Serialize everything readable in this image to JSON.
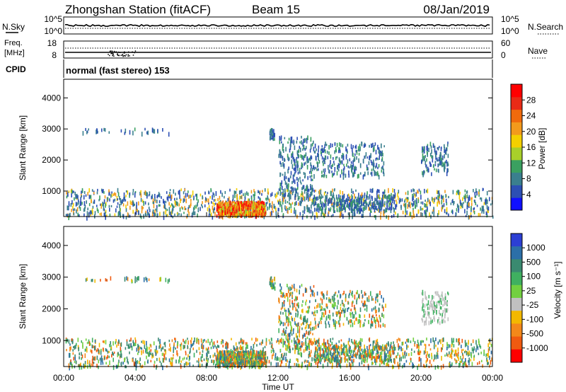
{
  "header": {
    "station": "Zhongshan Station (fitACF)",
    "beam": "Beam 15",
    "date": "08/Jan/2019"
  },
  "top_panels": {
    "nsky_label": "N.Sky",
    "nsky_ticks": [
      "10^5",
      "10^0"
    ],
    "nsearch_label": "N.Search",
    "nsearch_ticks": [
      "10^5",
      "10^0"
    ],
    "freq_label_1": "Freq.",
    "freq_label_2": "[MHz]",
    "freq_ticks": [
      "18",
      "8"
    ],
    "nave_label": "Nave",
    "nave_ticks": [
      "60",
      "0"
    ],
    "cpid_label": "CPID",
    "cpid_text": "normal (fast stereo) 153"
  },
  "chart_data": [
    {
      "type": "heatmap",
      "name": "power-panel",
      "ylabel": "Slant Range [km]",
      "y_ticks": [
        "1000",
        "2000",
        "3000",
        "4000"
      ],
      "ylim": [
        180,
        4600
      ],
      "xlim": [
        0,
        24
      ],
      "colorbar_label": "Power [dB]",
      "colorbar_ticks": [
        "4",
        "8",
        "12",
        "16",
        "20",
        "24",
        "28"
      ],
      "colorbar_colors": [
        "#1010ff",
        "#2c4fb4",
        "#3a7f8e",
        "#3aa060",
        "#a8cf2a",
        "#f4d000",
        "#f39a1c",
        "#f06a0c",
        "#e82a16",
        "#ff0000"
      ]
    },
    {
      "type": "heatmap",
      "name": "velocity-panel",
      "ylabel": "Slant Range [km]",
      "y_ticks": [
        "1000",
        "2000",
        "3000",
        "4000"
      ],
      "ylim": [
        180,
        4600
      ],
      "xlim": [
        0,
        24
      ],
      "colorbar_label": "Velocity [m s⁻¹]",
      "colorbar_ticks": [
        "1000",
        "500",
        "100",
        "25",
        "-25",
        "-100",
        "-500",
        "-1000"
      ],
      "colorbar_colors": [
        "#2c3fd4",
        "#2c6fa8",
        "#3a8a70",
        "#3fb060",
        "#72d040",
        "#c0c0c0",
        "#f3b800",
        "#f3881a",
        "#f05a10",
        "#ff0000"
      ]
    }
  ],
  "x_axis": {
    "tick_labels": [
      "00:00",
      "04:00",
      "08:00",
      "12:00",
      "16:00",
      "20:00",
      "00:00"
    ],
    "label": "Time UT"
  }
}
